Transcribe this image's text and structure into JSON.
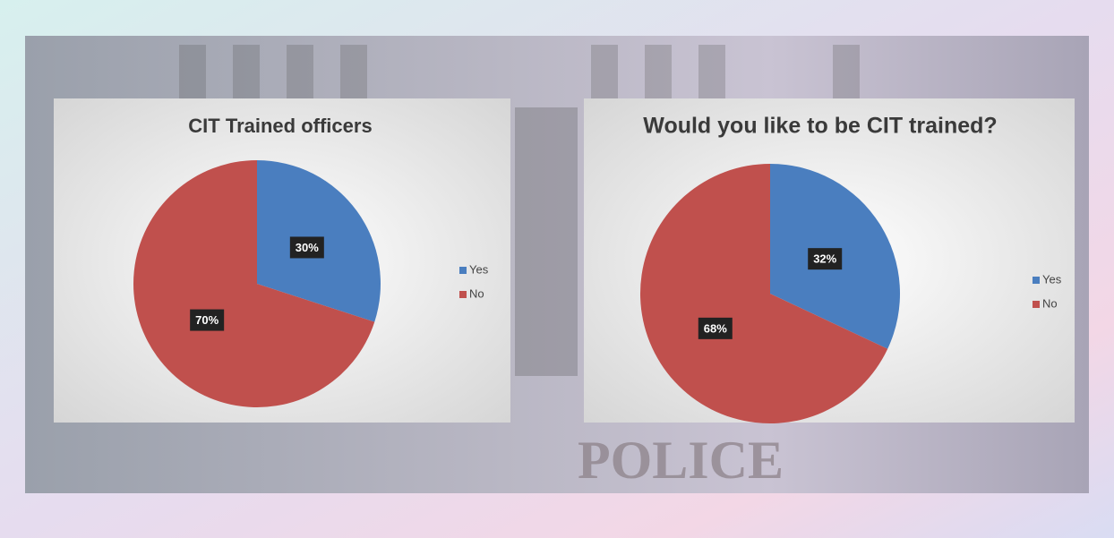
{
  "chart_data": [
    {
      "type": "pie",
      "title": "CIT Trained officers",
      "categories": [
        "Yes",
        "No"
      ],
      "values": [
        30,
        70
      ],
      "value_labels": [
        "30%",
        "70%"
      ],
      "colors": [
        "#4a7ebf",
        "#c0504d"
      ],
      "legend": "right"
    },
    {
      "type": "pie",
      "title": "Would you like to be CIT trained?",
      "categories": [
        "Yes",
        "No"
      ],
      "values": [
        32,
        68
      ],
      "value_labels": [
        "32%",
        "68%"
      ],
      "colors": [
        "#4a7ebf",
        "#c0504d"
      ],
      "legend": "right"
    }
  ],
  "background_text": "POLICE"
}
